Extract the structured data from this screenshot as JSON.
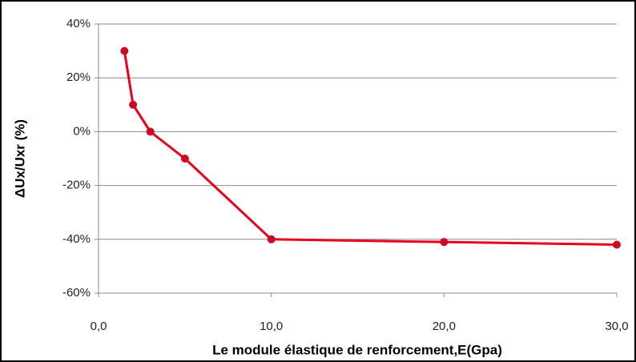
{
  "chart_data": {
    "type": "line",
    "x_label": "Le module élastique de renforcement,E(Gpa)",
    "y_label": "ΔUx/Uxr (%)",
    "x": [
      1.5,
      2,
      3,
      5,
      10,
      20,
      30
    ],
    "series": [
      {
        "name": "ΔUx/Uxr",
        "color": "#e8001c",
        "marker_color": "#c0102a",
        "values": [
          30,
          10,
          0,
          -10,
          -40,
          -41,
          -42
        ]
      }
    ],
    "xlim": [
      0,
      30
    ],
    "xticks": [
      {
        "value": 0,
        "label": "0,0"
      },
      {
        "value": 10,
        "label": "10,0"
      },
      {
        "value": 20,
        "label": "20,0"
      },
      {
        "value": 30,
        "label": "30,0"
      }
    ],
    "ylim": [
      -60,
      40
    ],
    "yticks": [
      {
        "value": -60,
        "label": "-60%"
      },
      {
        "value": -40,
        "label": "-40%"
      },
      {
        "value": -20,
        "label": "-20%"
      },
      {
        "value": 0,
        "label": "0%"
      },
      {
        "value": 20,
        "label": "20%"
      },
      {
        "value": 40,
        "label": "40%"
      }
    ],
    "grid": true
  }
}
